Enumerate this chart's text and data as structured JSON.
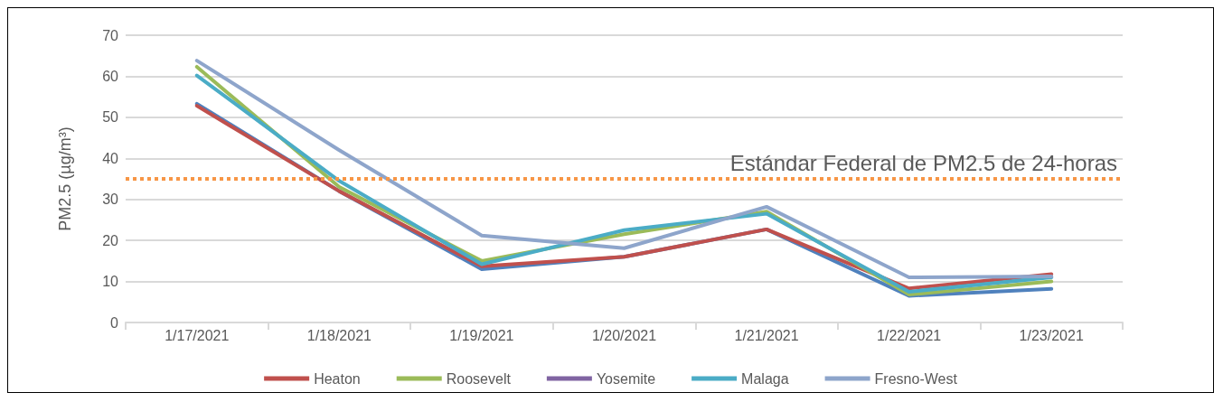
{
  "chart_data": {
    "type": "line",
    "ylabel": "PM2.5 (µg/m³)",
    "categories": [
      "1/17/2021",
      "1/18/2021",
      "1/19/2021",
      "1/20/2021",
      "1/21/2021",
      "1/22/2021",
      "1/23/2021"
    ],
    "series": [
      {
        "color": "#4f81bd",
        "values": [
          53.3,
          32,
          13,
          16,
          22.7,
          6.5,
          8.2
        ]
      },
      {
        "name": "Heaton",
        "color": "#c0504d",
        "values": [
          52.8,
          32,
          13.7,
          16,
          22.7,
          8.3,
          11.8
        ]
      },
      {
        "name": "Roosevelt",
        "color": "#9bbb59",
        "values": [
          62.3,
          33,
          15,
          21.5,
          27,
          6.8,
          10
        ]
      },
      {
        "name": "Yosemite",
        "color": "#8064a2",
        "values": [
          null,
          null,
          null,
          null,
          null,
          null,
          null
        ]
      },
      {
        "name": "Malaga",
        "color": "#4bacc6",
        "values": [
          60.2,
          34.5,
          14.2,
          22.5,
          26.5,
          7.5,
          11
        ]
      },
      {
        "name": "Fresno-West",
        "color": "#8ea5cb",
        "values": [
          63.8,
          42,
          21.2,
          18.1,
          28.2,
          11,
          11.2
        ]
      }
    ],
    "ylim": [
      0,
      70
    ],
    "yticks": [
      0,
      10,
      20,
      30,
      40,
      50,
      60,
      70
    ],
    "grid": "y",
    "legend": "bottom",
    "marker": "none",
    "line_style": "solid",
    "ref_lines": [
      {
        "axis": "y",
        "value": 35,
        "label": "Estándar Federal de PM2.5 de 24-horas",
        "color": "#f79646",
        "line_style": "dotted"
      }
    ]
  }
}
